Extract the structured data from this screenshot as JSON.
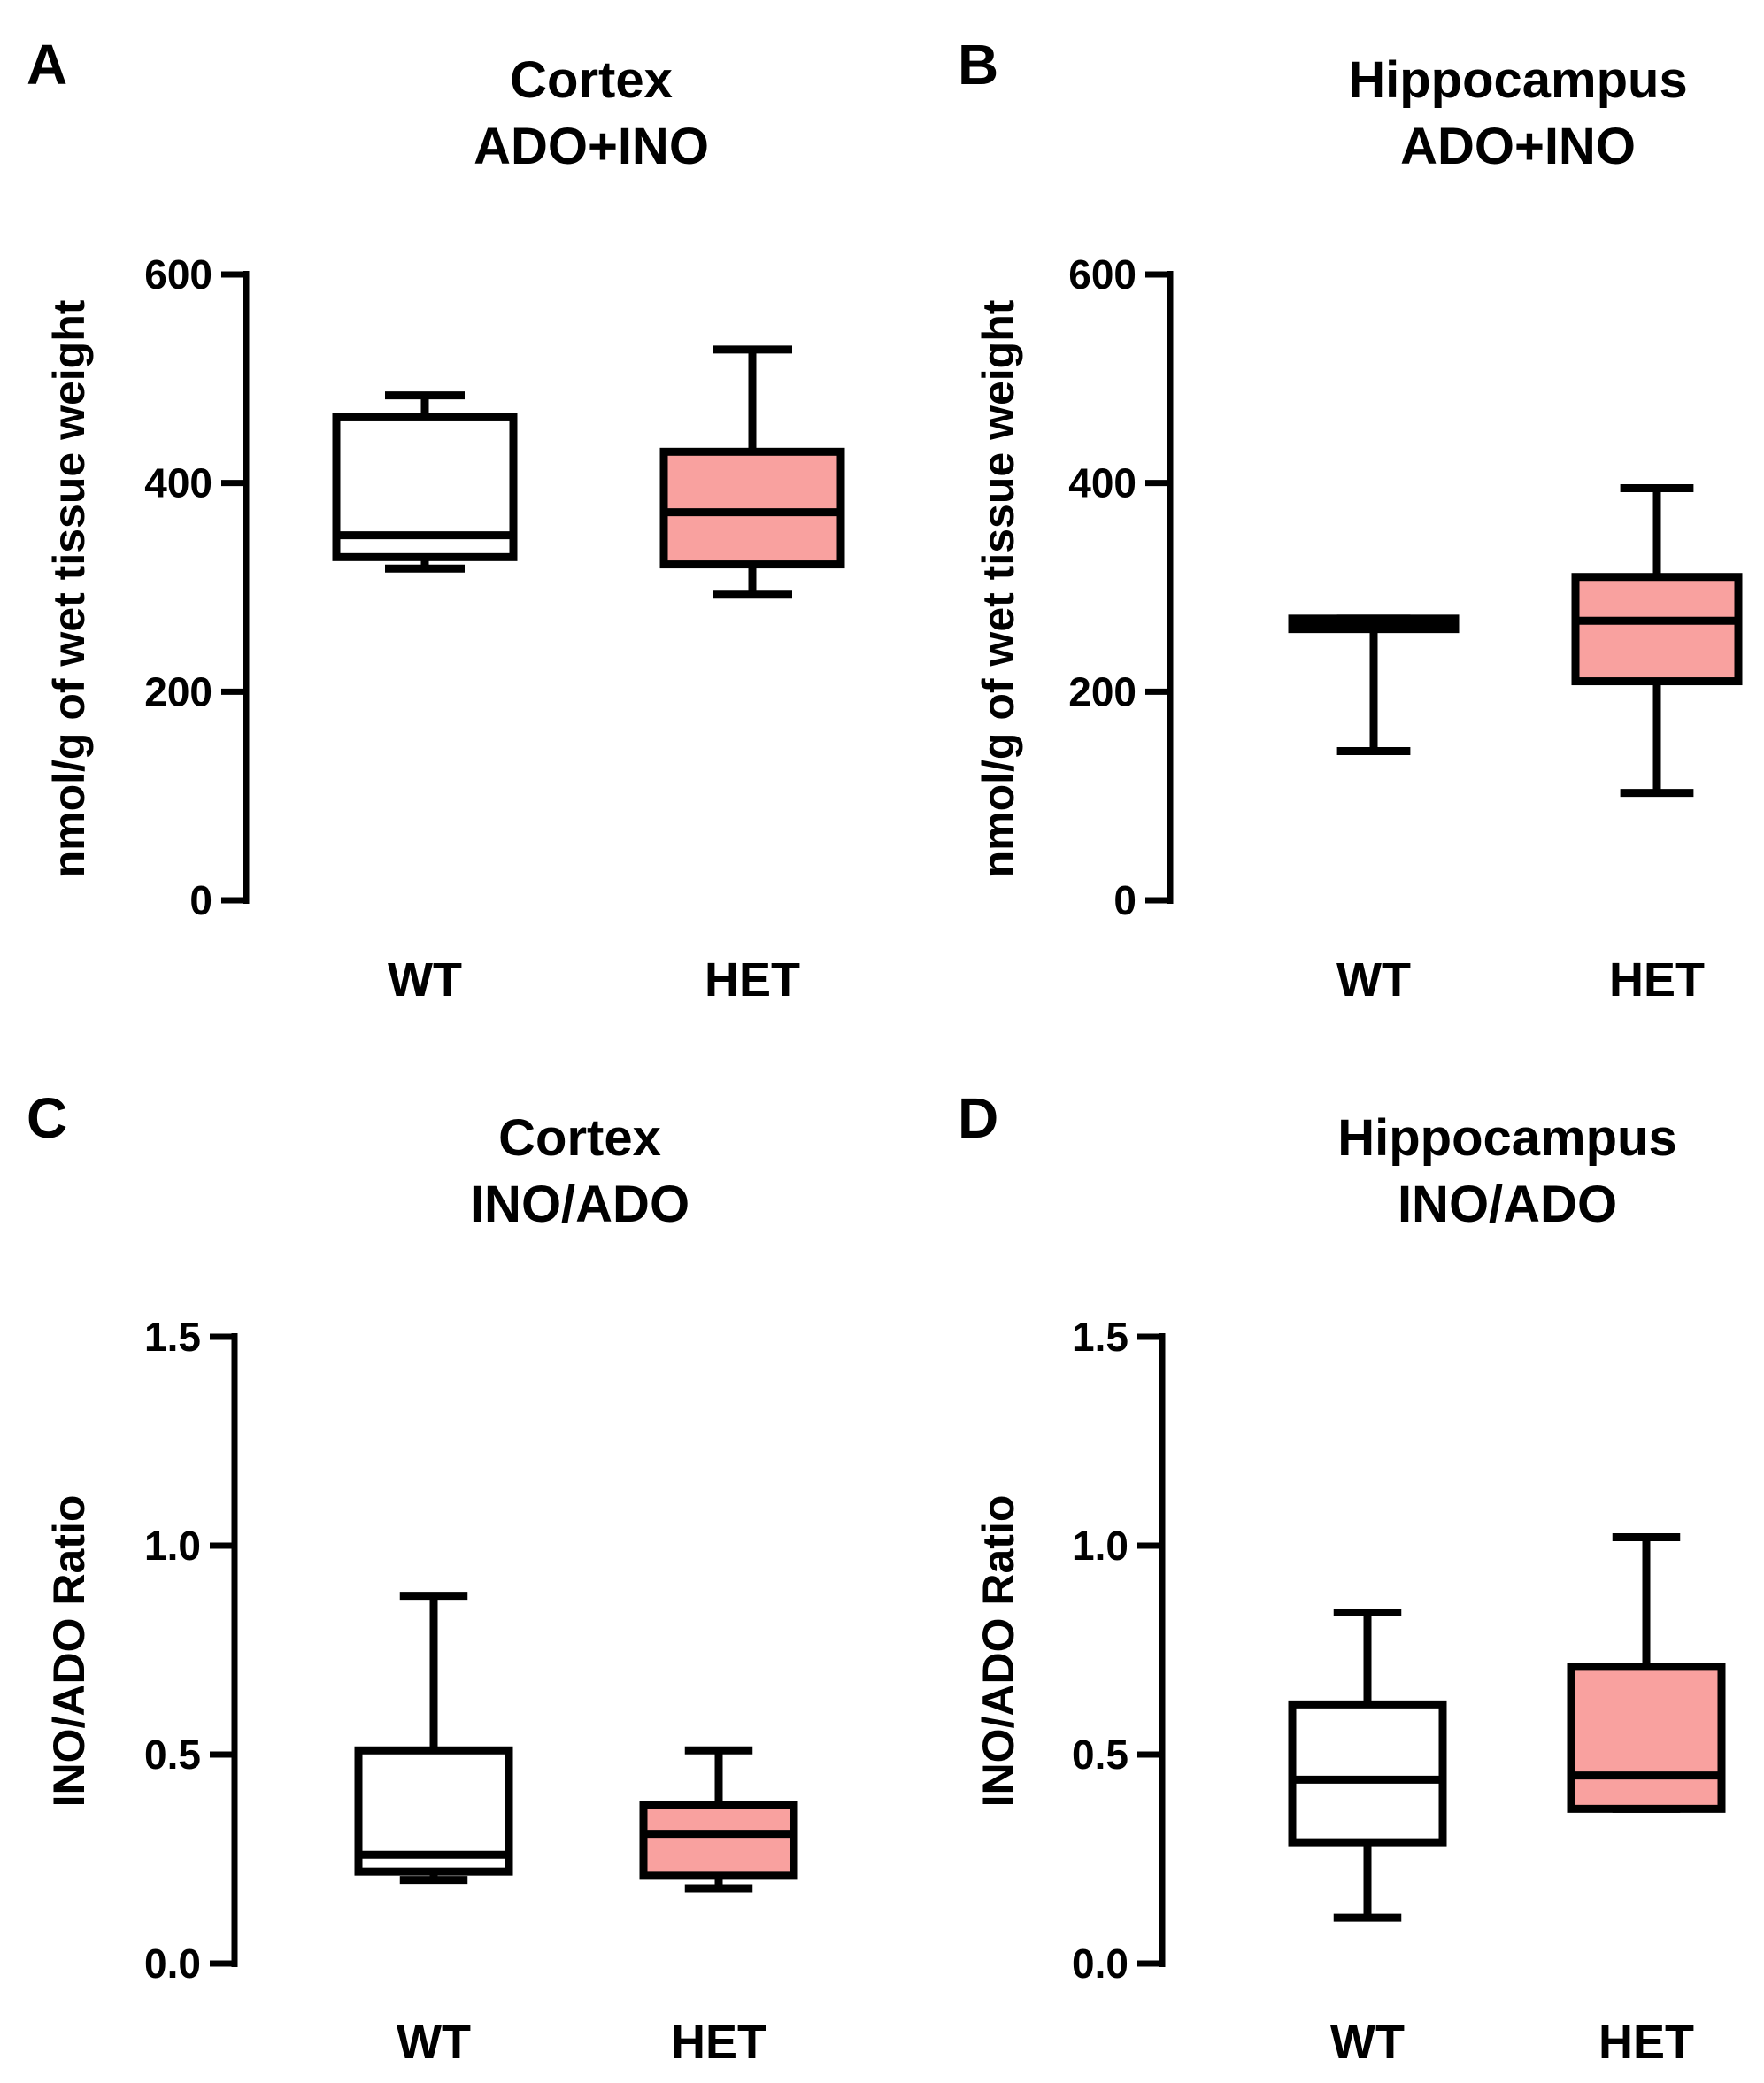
{
  "chart_data": [
    {
      "type": "box",
      "panel": "A",
      "title": [
        "Cortex",
        "ADO+INO"
      ],
      "ylabel": "nmol/g of wet tissue weight",
      "ylim": [
        0,
        600
      ],
      "yticks": [
        0,
        200,
        400,
        600
      ],
      "ytick_labels": [
        "0",
        "200",
        "400",
        "600"
      ],
      "categories": [
        "WT",
        "HET"
      ],
      "boxes": [
        {
          "name": "WT",
          "whisker_low": 318,
          "q1": 329,
          "median": 350,
          "q3": 463,
          "whisker_high": 484,
          "fill": "#ffffff"
        },
        {
          "name": "HET",
          "whisker_low": 293,
          "q1": 322,
          "median": 372,
          "q3": 430,
          "whisker_high": 528,
          "fill": "#f9a19f"
        }
      ]
    },
    {
      "type": "box",
      "panel": "B",
      "title": [
        "Hippocampus",
        "ADO+INO"
      ],
      "ylabel": "nmol/g of wet tissue weight",
      "ylim": [
        0,
        600
      ],
      "yticks": [
        0,
        200,
        400,
        600
      ],
      "ytick_labels": [
        "0",
        "200",
        "400",
        "600"
      ],
      "categories": [
        "WT",
        "HET"
      ],
      "boxes": [
        {
          "name": "WT",
          "whisker_low": 143,
          "q1": 260,
          "median": 265,
          "q3": 270,
          "whisker_high": 270,
          "fill": "#ffffff"
        },
        {
          "name": "HET",
          "whisker_low": 103,
          "q1": 210,
          "median": 268,
          "q3": 310,
          "whisker_high": 395,
          "fill": "#f9a19f"
        }
      ]
    },
    {
      "type": "box",
      "panel": "C",
      "title": [
        "Cortex",
        "INO/ADO"
      ],
      "ylabel": "INO/ADO Ratio",
      "ylim": [
        0,
        1.5
      ],
      "yticks": [
        0,
        0.5,
        1.0,
        1.5
      ],
      "ytick_labels": [
        "0.0",
        "0.5",
        "1.0",
        "1.5"
      ],
      "categories": [
        "WT",
        "HET"
      ],
      "boxes": [
        {
          "name": "WT",
          "whisker_low": 0.2,
          "q1": 0.22,
          "median": 0.26,
          "q3": 0.51,
          "whisker_high": 0.88,
          "fill": "#ffffff"
        },
        {
          "name": "HET",
          "whisker_low": 0.18,
          "q1": 0.21,
          "median": 0.31,
          "q3": 0.38,
          "whisker_high": 0.51,
          "fill": "#f9a19f"
        }
      ]
    },
    {
      "type": "box",
      "panel": "D",
      "title": [
        "Hippocampus",
        "INO/ADO"
      ],
      "ylabel": "INO/ADO Ratio",
      "ylim": [
        0,
        1.5
      ],
      "yticks": [
        0,
        0.5,
        1.0,
        1.5
      ],
      "ytick_labels": [
        "0.0",
        "0.5",
        "1.0",
        "1.5"
      ],
      "categories": [
        "WT",
        "HET"
      ],
      "boxes": [
        {
          "name": "WT",
          "whisker_low": 0.11,
          "q1": 0.29,
          "median": 0.44,
          "q3": 0.62,
          "whisker_high": 0.84,
          "fill": "#ffffff"
        },
        {
          "name": "HET",
          "whisker_low": 0.37,
          "q1": 0.37,
          "median": 0.45,
          "q3": 0.71,
          "whisker_high": 1.02,
          "fill": "#f9a19f"
        }
      ]
    }
  ]
}
